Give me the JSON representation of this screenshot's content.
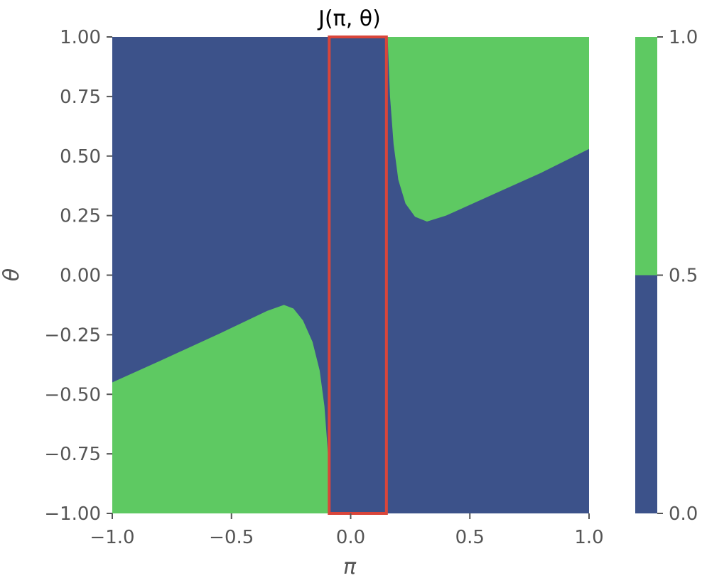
{
  "chart_data": {
    "type": "heatmap",
    "title": "J(π, θ)",
    "xlabel": "π",
    "ylabel": "θ",
    "xlim": [
      -1.0,
      1.0
    ],
    "ylim": [
      -1.0,
      1.0
    ],
    "xticks": [
      {
        "value": -1.0,
        "label": "−1.0"
      },
      {
        "value": -0.5,
        "label": "−0.5"
      },
      {
        "value": 0.0,
        "label": "0.0"
      },
      {
        "value": 0.5,
        "label": "0.5"
      },
      {
        "value": 1.0,
        "label": "1.0"
      }
    ],
    "yticks": [
      {
        "value": 1.0,
        "label": "1.00"
      },
      {
        "value": 0.75,
        "label": "0.75"
      },
      {
        "value": 0.5,
        "label": "0.50"
      },
      {
        "value": 0.25,
        "label": "0.25"
      },
      {
        "value": 0.0,
        "label": "0.00"
      },
      {
        "value": -0.25,
        "label": "−0.25"
      },
      {
        "value": -0.5,
        "label": "−0.50"
      },
      {
        "value": -0.75,
        "label": "−0.75"
      },
      {
        "value": -1.0,
        "label": "−1.00"
      }
    ],
    "grid": false,
    "colors": {
      "low": "#3c528a",
      "high": "#5ec962",
      "highlight": "#d9453a",
      "text": "#555555"
    },
    "background_value": 0,
    "regions": [
      {
        "value": 1,
        "boundary": [
          [
            0.155,
            1.0
          ],
          [
            0.165,
            0.75
          ],
          [
            0.18,
            0.55
          ],
          [
            0.2,
            0.4
          ],
          [
            0.23,
            0.3
          ],
          [
            0.27,
            0.245
          ],
          [
            0.32,
            0.225
          ],
          [
            0.4,
            0.25
          ],
          [
            0.6,
            0.34
          ],
          [
            0.8,
            0.43
          ],
          [
            1.0,
            0.53
          ],
          [
            1.0,
            1.0
          ]
        ]
      },
      {
        "value": 1,
        "boundary": [
          [
            -0.09,
            -1.0
          ],
          [
            -0.095,
            -0.75
          ],
          [
            -0.11,
            -0.55
          ],
          [
            -0.13,
            -0.4
          ],
          [
            -0.16,
            -0.28
          ],
          [
            -0.2,
            -0.19
          ],
          [
            -0.24,
            -0.14
          ],
          [
            -0.28,
            -0.125
          ],
          [
            -0.35,
            -0.15
          ],
          [
            -0.55,
            -0.245
          ],
          [
            -0.8,
            -0.36
          ],
          [
            -1.0,
            -0.45
          ],
          [
            -1.0,
            -1.0
          ]
        ]
      }
    ],
    "highlight_rect": {
      "x0": -0.09,
      "x1": 0.15,
      "y0": -1.0,
      "y1": 1.0
    },
    "colorbar": {
      "ticks": [
        {
          "value": 1.0,
          "label": "1.0"
        },
        {
          "value": 0.5,
          "label": "0.5"
        },
        {
          "value": 0.0,
          "label": "0.0"
        }
      ],
      "levels": [
        {
          "from": 0.0,
          "to": 0.5,
          "value": 0
        },
        {
          "from": 0.5,
          "to": 1.0,
          "value": 1
        }
      ]
    }
  }
}
